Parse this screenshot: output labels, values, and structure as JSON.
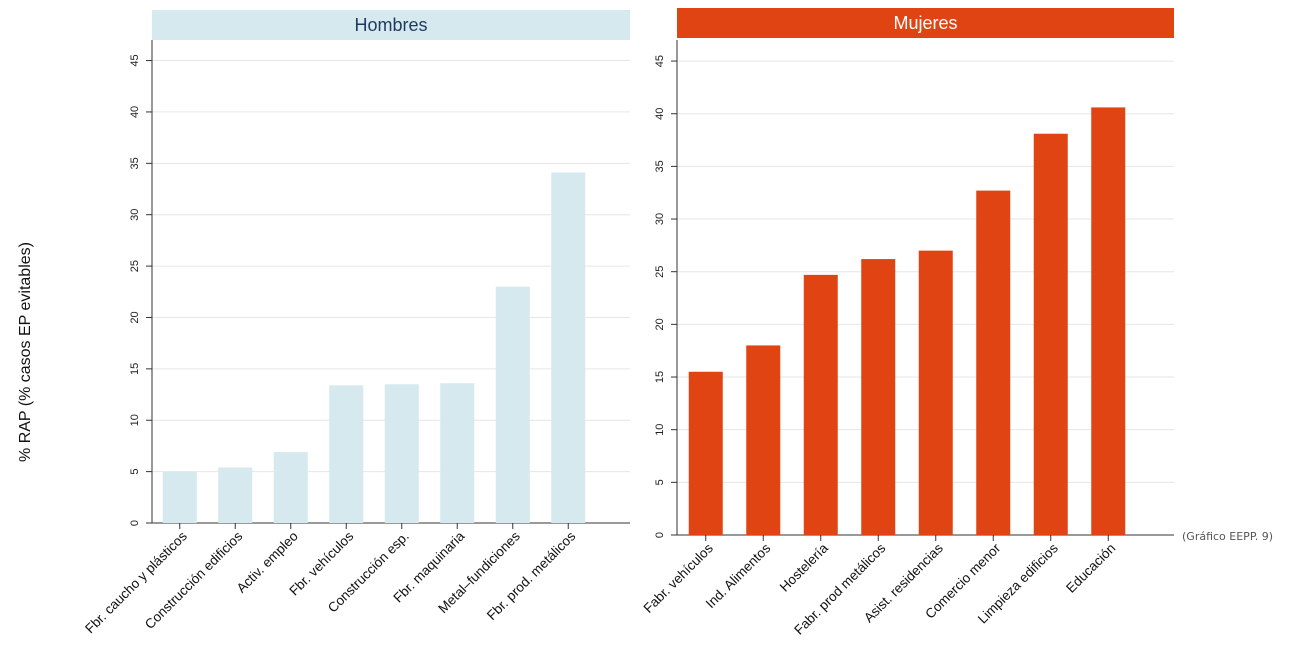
{
  "chart_data": [
    {
      "type": "bar",
      "title": "Hombres",
      "ylabel": "% RAP (% casos EP evitables)",
      "ylim": [
        0,
        47
      ],
      "yticks": [
        0,
        5,
        10,
        15,
        20,
        25,
        30,
        35,
        40,
        45
      ],
      "grid": true,
      "bar_color": "#d5e9ee",
      "header_color": "#d5e9ee",
      "header_text_color": "#1f3a5f",
      "categories": [
        "Fbr. caucho y plásticos",
        "Construcción edificios",
        "Activ. empleo",
        "Fbr. vehículos",
        "Construcción esp.",
        "Fbr. maquinaria",
        "Metal–fundiciones",
        "Fbr. prod. metálicos"
      ],
      "values": [
        5.0,
        5.4,
        6.9,
        13.4,
        13.5,
        13.6,
        23.0,
        34.1
      ]
    },
    {
      "type": "bar",
      "title": "Mujeres",
      "ylim": [
        0,
        47
      ],
      "yticks": [
        0,
        5,
        10,
        15,
        20,
        25,
        30,
        35,
        40,
        45
      ],
      "grid": true,
      "bar_color": "#e04412",
      "header_color": "#e04412",
      "header_text_color": "#ffffff",
      "categories": [
        "Fabr. vehículos",
        "Ind. Alimentos",
        "Hostelería",
        "Fabr. prod metálicos",
        "Asist. residencias",
        "Comercio menor",
        "Limpieza edificios",
        "Educación"
      ],
      "values": [
        15.5,
        18.0,
        24.7,
        26.2,
        27.0,
        32.7,
        38.1,
        40.6
      ]
    }
  ],
  "ylabel": "% RAP (% casos EP evitables)",
  "source": "(Gráfico EEPP. 9)"
}
